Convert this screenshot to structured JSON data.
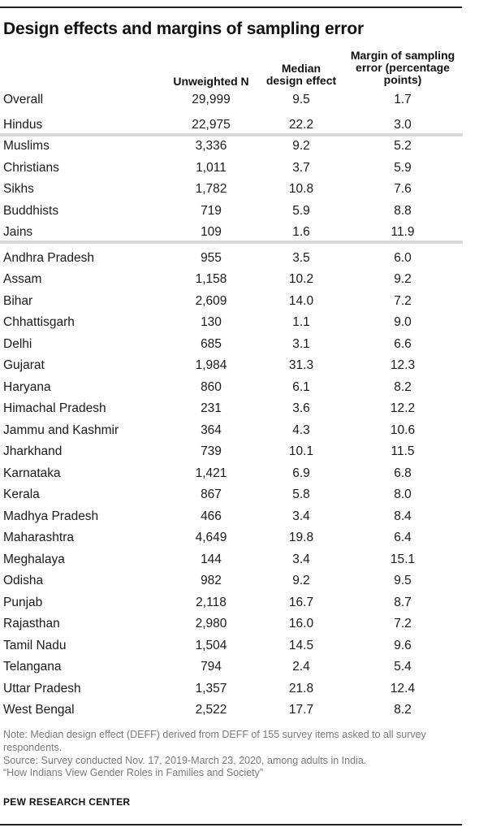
{
  "title": "Design effects and margins of sampling error",
  "columns": {
    "n_line1": "Unweighted N",
    "deff_line1": "Median",
    "deff_line2": "design effect",
    "moe_line1": "Margin of sampling",
    "moe_line2": "error (percentage",
    "moe_line3": "points)"
  },
  "rows": [
    {
      "label": "Overall",
      "n": "29,999",
      "deff": "9.5",
      "moe": "1.7"
    },
    {
      "label": "Hindus",
      "n": "22,975",
      "deff": "22.2",
      "moe": "3.0"
    },
    {
      "label": "Muslims",
      "n": "3,336",
      "deff": "9.2",
      "moe": "5.2"
    },
    {
      "label": "Christians",
      "n": "1,011",
      "deff": "3.7",
      "moe": "5.9"
    },
    {
      "label": "Sikhs",
      "n": "1,782",
      "deff": "10.8",
      "moe": "7.6"
    },
    {
      "label": "Buddhists",
      "n": "719",
      "deff": "5.9",
      "moe": "8.8"
    },
    {
      "label": "Jains",
      "n": "109",
      "deff": "1.6",
      "moe": "11.9"
    },
    {
      "label": "Andhra Pradesh",
      "n": "955",
      "deff": "3.5",
      "moe": "6.0"
    },
    {
      "label": "Assam",
      "n": "1,158",
      "deff": "10.2",
      "moe": "9.2"
    },
    {
      "label": "Bihar",
      "n": "2,609",
      "deff": "14.0",
      "moe": "7.2"
    },
    {
      "label": "Chhattisgarh",
      "n": "130",
      "deff": "1.1",
      "moe": "9.0"
    },
    {
      "label": "Delhi",
      "n": "685",
      "deff": "3.1",
      "moe": "6.6"
    },
    {
      "label": "Gujarat",
      "n": "1,984",
      "deff": "31.3",
      "moe": "12.3"
    },
    {
      "label": "Haryana",
      "n": "860",
      "deff": "6.1",
      "moe": "8.2"
    },
    {
      "label": "Himachal Pradesh",
      "n": "231",
      "deff": "3.6",
      "moe": "12.2"
    },
    {
      "label": "Jammu and Kashmir",
      "n": "364",
      "deff": "4.3",
      "moe": "10.6"
    },
    {
      "label": "Jharkhand",
      "n": "739",
      "deff": "10.1",
      "moe": "11.5"
    },
    {
      "label": "Karnataka",
      "n": "1,421",
      "deff": "6.9",
      "moe": "6.8"
    },
    {
      "label": "Kerala",
      "n": "867",
      "deff": "5.8",
      "moe": "8.0"
    },
    {
      "label": "Madhya Pradesh",
      "n": "466",
      "deff": "3.4",
      "moe": "8.4"
    },
    {
      "label": "Maharashtra",
      "n": "4,649",
      "deff": "19.8",
      "moe": "6.4"
    },
    {
      "label": "Meghalaya",
      "n": "144",
      "deff": "3.4",
      "moe": "15.1"
    },
    {
      "label": "Odisha",
      "n": "982",
      "deff": "9.2",
      "moe": "9.5"
    },
    {
      "label": "Punjab",
      "n": "2,118",
      "deff": "16.7",
      "moe": "8.7"
    },
    {
      "label": "Rajasthan",
      "n": "2,980",
      "deff": "16.0",
      "moe": "7.2"
    },
    {
      "label": "Tamil Nadu",
      "n": "1,504",
      "deff": "14.5",
      "moe": "9.6"
    },
    {
      "label": "Telangana",
      "n": "794",
      "deff": "2.4",
      "moe": "5.4"
    },
    {
      "label": "Uttar Pradesh",
      "n": "1,357",
      "deff": "21.8",
      "moe": "12.4"
    },
    {
      "label": "West Bengal",
      "n": "2,522",
      "deff": "17.7",
      "moe": "8.2"
    }
  ],
  "notes": {
    "note": "Note: Median design effect (DEFF) derived from DEFF of 155 survey items asked to all survey respondents.",
    "source": "Source: Survey conducted Nov. 17, 2019-March 23, 2020, among adults in India.",
    "report": "“How Indians View Gender Roles in Families and Society”"
  },
  "brand": "PEW RESEARCH CENTER"
}
